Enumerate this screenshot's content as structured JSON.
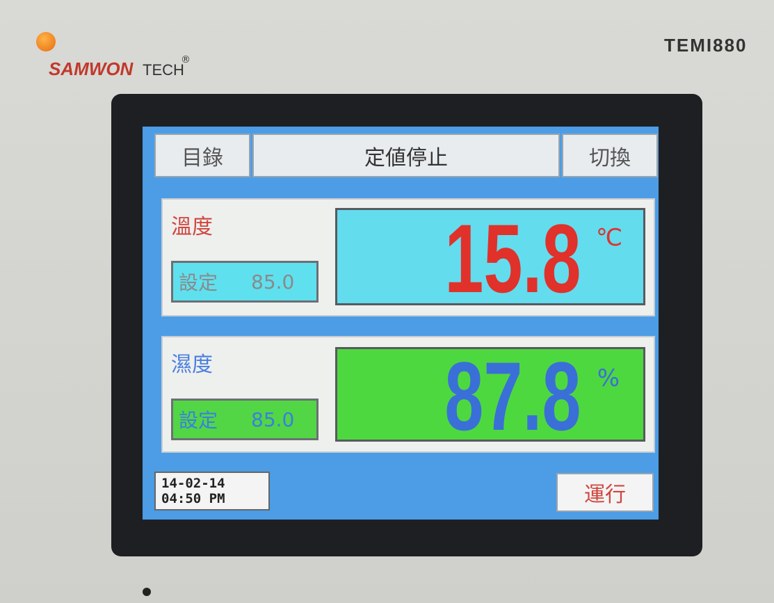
{
  "brand": {
    "name": "SAMWON",
    "suffix": "TECH",
    "mark": "®"
  },
  "model": "TEMI880",
  "header": {
    "left_button": "目錄",
    "status": "定値停止",
    "right_button": "切換"
  },
  "temperature": {
    "label": "溫度",
    "set_label": "設定",
    "set_value": "85.0",
    "value": "15.8",
    "unit": "℃"
  },
  "humidity": {
    "label": "濕度",
    "set_label": "設定",
    "set_value": "85.0",
    "value": "87.8",
    "unit": "%"
  },
  "footer": {
    "date": "14-02-14",
    "time": "04:50 PM",
    "run_button": "運行"
  }
}
